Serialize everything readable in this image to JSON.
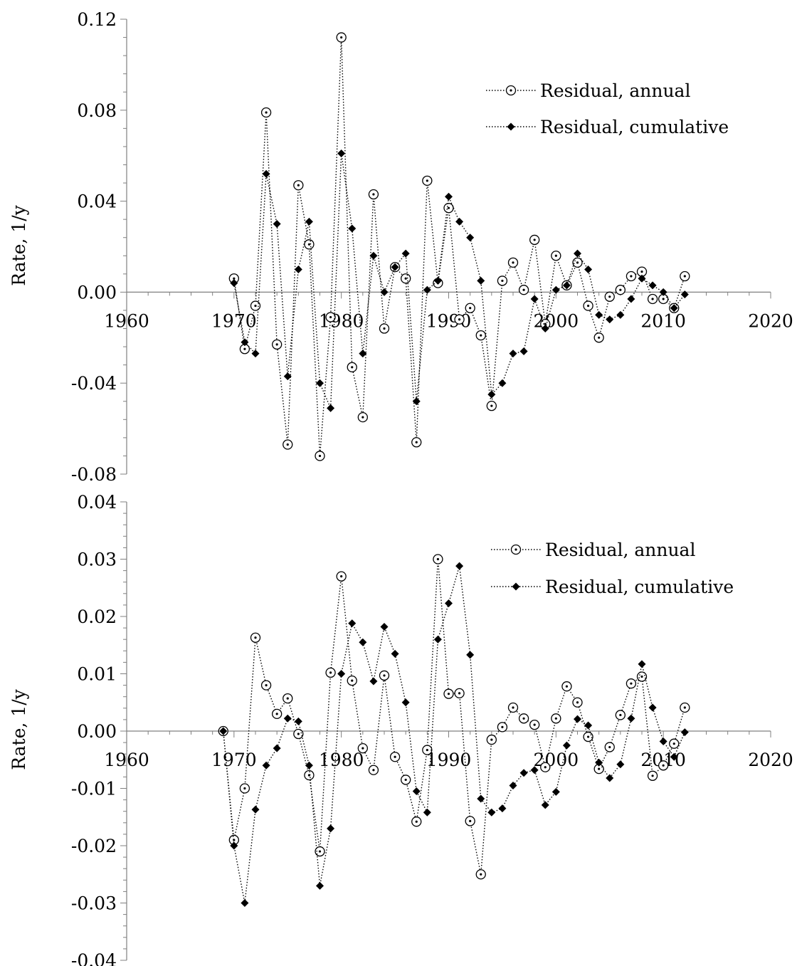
{
  "chart_data": [
    {
      "type": "line",
      "ylabel": "Rate, 1/y",
      "xlim": [
        1960,
        2020
      ],
      "ylim": [
        -0.08,
        0.12
      ],
      "x_ticks": [
        "1960",
        "1970",
        "1980",
        "1990",
        "2000",
        "2010",
        "2020"
      ],
      "y_ticks": [
        "-0.08",
        "-0.04",
        "0.00",
        "0.04",
        "0.08",
        "0.12"
      ],
      "legend_position": "top-right",
      "series": [
        {
          "name": "Residual, annual",
          "marker": "open-circle-dot",
          "x": [
            1970,
            1971,
            1972,
            1973,
            1974,
            1975,
            1976,
            1977,
            1978,
            1979,
            1980,
            1981,
            1982,
            1983,
            1984,
            1985,
            1986,
            1987,
            1988,
            1989,
            1990,
            1991,
            1992,
            1993,
            1994,
            1995,
            1996,
            1997,
            1998,
            1999,
            2000,
            2001,
            2002,
            2003,
            2004,
            2005,
            2006,
            2007,
            2008,
            2009,
            2010,
            2011,
            2012
          ],
          "y": [
            0.006,
            -0.025,
            -0.006,
            0.079,
            -0.023,
            -0.067,
            0.047,
            0.021,
            -0.072,
            -0.011,
            0.112,
            -0.033,
            -0.055,
            0.043,
            -0.016,
            0.011,
            0.006,
            -0.066,
            0.049,
            0.004,
            0.037,
            -0.012,
            -0.007,
            -0.019,
            -0.05,
            0.005,
            0.013,
            0.001,
            0.023,
            -0.014,
            0.016,
            0.003,
            0.013,
            -0.006,
            -0.02,
            -0.002,
            0.001,
            0.007,
            0.009,
            -0.003,
            -0.003,
            -0.007,
            0.007
          ]
        },
        {
          "name": "Residual, cumulative",
          "marker": "filled-diamond",
          "x": [
            1970,
            1971,
            1972,
            1973,
            1974,
            1975,
            1976,
            1977,
            1978,
            1979,
            1980,
            1981,
            1982,
            1983,
            1984,
            1985,
            1986,
            1987,
            1988,
            1989,
            1990,
            1991,
            1992,
            1993,
            1994,
            1995,
            1996,
            1997,
            1998,
            1999,
            2000,
            2001,
            2002,
            2003,
            2004,
            2005,
            2006,
            2007,
            2008,
            2009,
            2010,
            2011,
            2012
          ],
          "y": [
            0.004,
            -0.022,
            -0.027,
            0.052,
            0.03,
            -0.037,
            0.01,
            0.031,
            -0.04,
            -0.051,
            0.061,
            0.028,
            -0.027,
            0.016,
            0.0,
            0.011,
            0.017,
            -0.048,
            0.001,
            0.005,
            0.042,
            0.031,
            0.024,
            0.005,
            -0.045,
            -0.04,
            -0.027,
            -0.026,
            -0.003,
            -0.016,
            0.001,
            0.003,
            0.017,
            0.01,
            -0.01,
            -0.012,
            -0.01,
            -0.003,
            0.006,
            0.003,
            0.0,
            -0.007,
            -0.001
          ]
        }
      ]
    },
    {
      "type": "line",
      "ylabel": "Rate, 1/y",
      "xlim": [
        1960,
        2020
      ],
      "ylim": [
        -0.04,
        0.04
      ],
      "x_ticks": [
        "1960",
        "1970",
        "1980",
        "1990",
        "2000",
        "2010",
        "2020"
      ],
      "y_ticks": [
        "-0.04",
        "-0.03",
        "-0.02",
        "-0.01",
        "0.00",
        "0.01",
        "0.02",
        "0.03",
        "0.04"
      ],
      "legend_position": "top-right",
      "series": [
        {
          "name": "Residual, annual",
          "marker": "open-circle-dot",
          "x": [
            1969,
            1970,
            1971,
            1972,
            1973,
            1974,
            1975,
            1976,
            1977,
            1978,
            1979,
            1980,
            1981,
            1982,
            1983,
            1984,
            1985,
            1986,
            1987,
            1988,
            1989,
            1990,
            1991,
            1992,
            1993,
            1994,
            1995,
            1996,
            1997,
            1998,
            1999,
            2000,
            2001,
            2002,
            2003,
            2004,
            2005,
            2006,
            2007,
            2008,
            2009,
            2010,
            2011,
            2012
          ],
          "y": [
            0.0,
            -0.019,
            -0.01,
            0.0163,
            0.008,
            0.003,
            0.0057,
            -0.0005,
            -0.0077,
            -0.021,
            0.0102,
            0.027,
            0.0088,
            -0.003,
            -0.0068,
            0.0097,
            -0.0045,
            -0.0085,
            -0.0158,
            -0.0033,
            0.03,
            0.0065,
            0.0066,
            -0.0157,
            -0.025,
            -0.0015,
            0.0007,
            0.0041,
            0.0022,
            0.0011,
            -0.0063,
            0.0022,
            0.0078,
            0.005,
            -0.001,
            -0.0066,
            -0.0028,
            0.0028,
            0.0083,
            0.0095,
            -0.0078,
            -0.006,
            -0.0022,
            0.0041
          ]
        },
        {
          "name": "Residual, cumulative",
          "marker": "filled-diamond",
          "x": [
            1969,
            1970,
            1971,
            1972,
            1973,
            1974,
            1975,
            1976,
            1977,
            1978,
            1979,
            1980,
            1981,
            1982,
            1983,
            1984,
            1985,
            1986,
            1987,
            1988,
            1989,
            1990,
            1991,
            1992,
            1993,
            1994,
            1995,
            1996,
            1997,
            1998,
            1999,
            2000,
            2001,
            2002,
            2003,
            2004,
            2005,
            2006,
            2007,
            2008,
            2009,
            2010,
            2011,
            2012
          ],
          "y": [
            0.0,
            -0.02,
            -0.03,
            -0.0137,
            -0.006,
            -0.003,
            0.0022,
            0.0017,
            -0.006,
            -0.027,
            -0.017,
            0.01,
            0.0188,
            0.0155,
            0.0087,
            0.0182,
            0.0135,
            0.005,
            -0.0105,
            -0.0142,
            0.016,
            0.0223,
            0.0288,
            0.0133,
            -0.0118,
            -0.0142,
            -0.0135,
            -0.0095,
            -0.0073,
            -0.0068,
            -0.0129,
            -0.0106,
            -0.0025,
            0.0021,
            0.001,
            -0.0055,
            -0.0082,
            -0.0058,
            0.0022,
            0.0117,
            0.0041,
            -0.0018,
            -0.0045,
            -0.0002
          ]
        }
      ]
    }
  ]
}
